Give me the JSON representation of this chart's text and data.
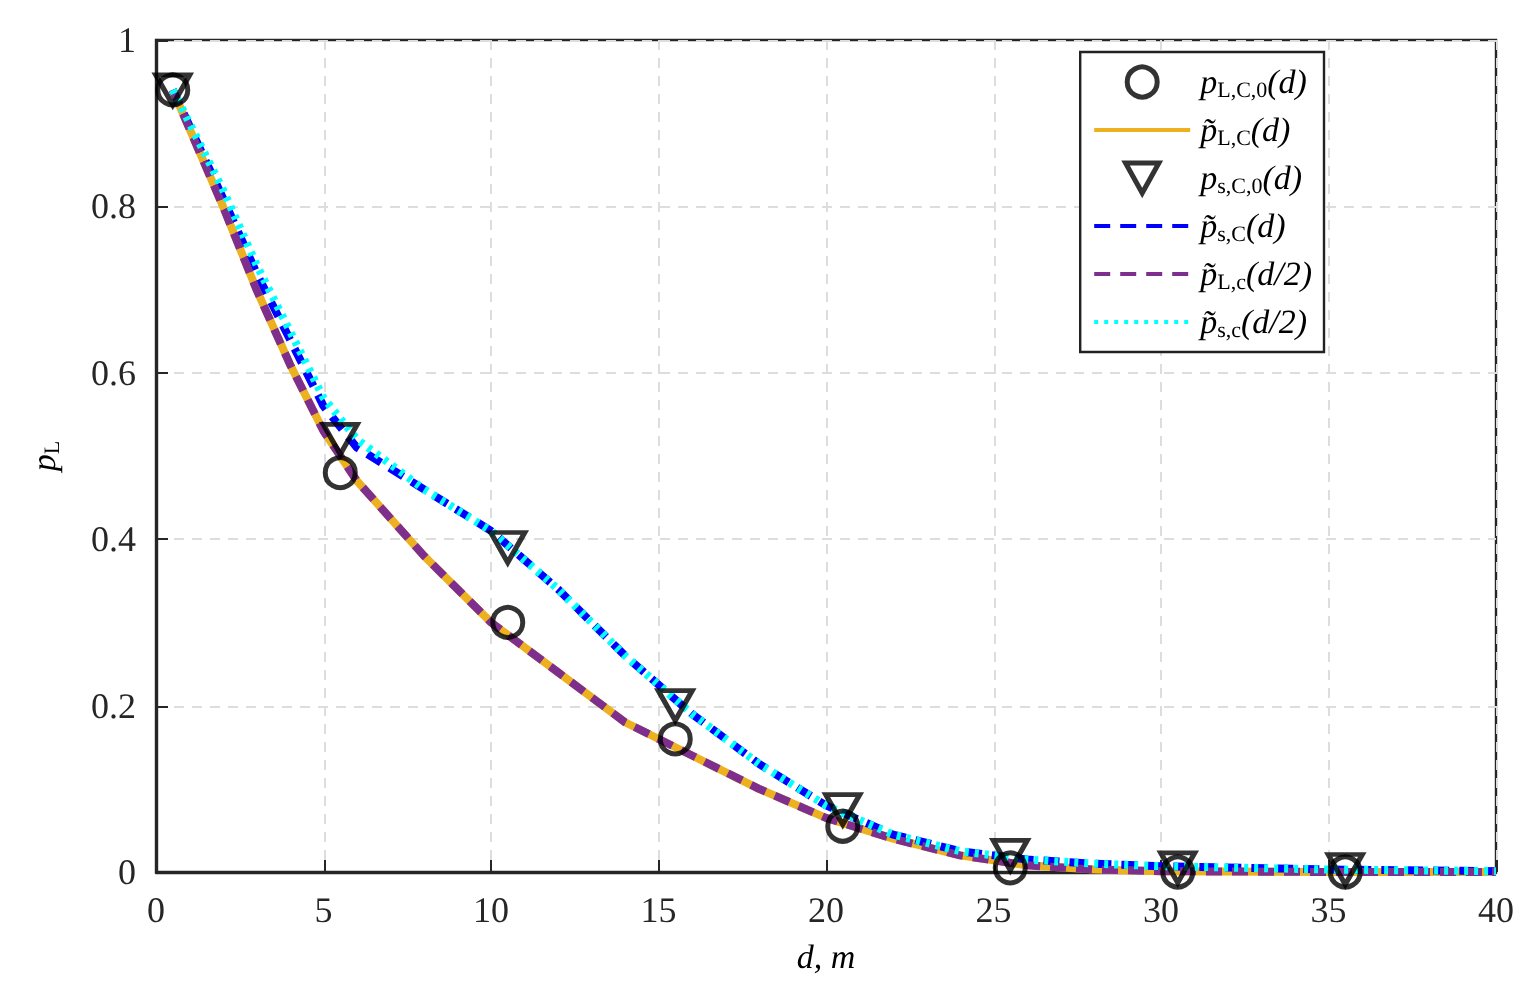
{
  "chart_data": {
    "type": "line",
    "xlabel": "d, m",
    "ylabel": "p$_{L}$",
    "xlim": [
      0,
      40
    ],
    "xticks": [
      0,
      5,
      10,
      15,
      20,
      25,
      30,
      35,
      40
    ],
    "ylim": [
      0,
      1
    ],
    "yticks": [
      0,
      0.2,
      0.4,
      0.6,
      0.8,
      1
    ],
    "grid": true,
    "legend": "top right",
    "series": [
      {
        "name": "p$_{L,C,0}$(d)",
        "type": "scatter",
        "marker": "circle",
        "color": "#000000",
        "x": [
          0.5,
          5.5,
          10.5,
          15.5,
          20.5,
          25.5,
          30.5,
          35.5
        ],
        "values": [
          0.94,
          0.48,
          0.3,
          0.16,
          0.055,
          0.005,
          0,
          0
        ]
      },
      {
        "name": "p̃$_{L,C}$(d)",
        "line_style": "solid",
        "color": "#edb120",
        "x": [
          0.5,
          2,
          3,
          4,
          5,
          6,
          8,
          10,
          12,
          14,
          16,
          18,
          20,
          22,
          24,
          26,
          28,
          30,
          35,
          40
        ],
        "values": [
          0.94,
          0.8,
          0.7,
          0.61,
          0.53,
          0.47,
          0.38,
          0.3,
          0.24,
          0.18,
          0.14,
          0.1,
          0.065,
          0.04,
          0.02,
          0.008,
          0.003,
          0.001,
          0,
          0
        ]
      },
      {
        "name": "p$_{s,C,0}$(d)",
        "type": "scatter",
        "marker": "triangle",
        "color": "#000000",
        "x": [
          0.5,
          5.5,
          10.5,
          15.5,
          20.5,
          25.5,
          30.5,
          35.5
        ],
        "values": [
          0.94,
          0.52,
          0.39,
          0.2,
          0.075,
          0.02,
          0.005,
          0.003
        ]
      },
      {
        "name": "p̃$_{s,C}$(d)",
        "line_style": "dashed",
        "color": "#0000ff",
        "x": [
          0.5,
          2,
          3,
          4,
          5,
          6,
          8,
          10,
          12,
          14,
          16,
          18,
          20,
          22,
          24,
          26,
          28,
          30,
          35,
          40
        ],
        "values": [
          0.94,
          0.81,
          0.72,
          0.64,
          0.56,
          0.51,
          0.46,
          0.41,
          0.34,
          0.26,
          0.19,
          0.13,
          0.08,
          0.045,
          0.025,
          0.015,
          0.01,
          0.007,
          0.003,
          0.001
        ]
      },
      {
        "name": "p̃$_{L,c}$(d/2)",
        "line_style": "dashed",
        "color": "#7e2f8e",
        "x": [
          0.5,
          2,
          3,
          4,
          5,
          6,
          8,
          10,
          12,
          14,
          16,
          18,
          20,
          22,
          24,
          26,
          28,
          30,
          35,
          40
        ],
        "values": [
          0.94,
          0.8,
          0.7,
          0.61,
          0.53,
          0.47,
          0.38,
          0.3,
          0.24,
          0.18,
          0.14,
          0.1,
          0.065,
          0.04,
          0.02,
          0.008,
          0.003,
          0.001,
          0,
          0
        ]
      },
      {
        "name": "p̃$_{s,c}$(d/2)",
        "line_style": "dotted",
        "color": "#00ffff",
        "x": [
          0.5,
          2,
          3,
          4,
          5,
          6,
          8,
          10,
          12,
          14,
          16,
          18,
          20,
          22,
          24,
          26,
          28,
          30,
          35,
          40
        ],
        "values": [
          0.94,
          0.82,
          0.73,
          0.65,
          0.57,
          0.52,
          0.46,
          0.41,
          0.34,
          0.26,
          0.19,
          0.13,
          0.08,
          0.045,
          0.025,
          0.015,
          0.01,
          0.007,
          0.003,
          0.001
        ]
      }
    ]
  }
}
